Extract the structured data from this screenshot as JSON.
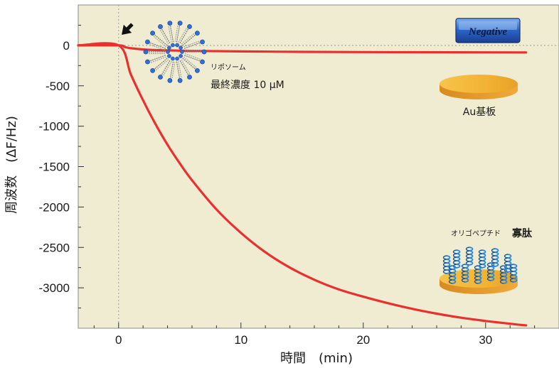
{
  "chart_data": {
    "type": "line",
    "xlabel": "時間　(min)",
    "ylabel": "周波数　(ΔF/Hz)",
    "xlim": [
      -3.3,
      36
    ],
    "ylim": [
      -3500,
      500
    ],
    "x_ticks": [
      0,
      10,
      20,
      30
    ],
    "y_ticks": [
      0,
      -500,
      -1000,
      -1500,
      -2000,
      -2500,
      -3000
    ],
    "grid": false,
    "series": [
      {
        "x": [
          -3.3,
          0,
          0.5,
          1,
          2,
          3,
          5,
          7,
          10,
          15,
          20,
          25,
          30,
          33.3
        ],
        "y": [
          0,
          0,
          -20,
          -35,
          -50,
          -58,
          -65,
          -70,
          -75,
          -80,
          -83,
          -85,
          -86,
          -87
        ]
      },
      {
        "x": [
          -3.3,
          0,
          1,
          2,
          3,
          4,
          5,
          6,
          8,
          10,
          12,
          14,
          16,
          18,
          20,
          22,
          24,
          26,
          28,
          30,
          32,
          33.3
        ],
        "y": [
          0,
          0,
          -360,
          -680,
          -970,
          -1230,
          -1460,
          -1670,
          -2030,
          -2320,
          -2560,
          -2750,
          -2900,
          -3020,
          -3110,
          -3190,
          -3260,
          -3320,
          -3370,
          -3410,
          -3445,
          -3465
        ]
      }
    ],
    "annotations": {
      "liposome_label": "リポソーム",
      "concentration_label": "最終濃度 10 μM",
      "badge_label": "Negative",
      "substrate_label": "Au基板",
      "oligopeptide_label": "オリゴペプチド",
      "oligopeptide_bold": "寡肽"
    }
  },
  "colors": {
    "plot_background": "#f0ecd1",
    "line": "#e8302f",
    "reference_line": "#a9a9a9",
    "disc_gold": "#f2b233",
    "lipid_head": "#2f6fd8",
    "helix": "#2a86d8",
    "badge_fill": "#2a63c6"
  }
}
